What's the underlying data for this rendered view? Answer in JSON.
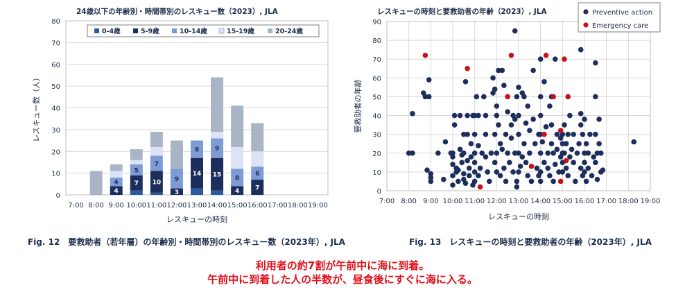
{
  "chart_data": [
    {
      "type": "bar",
      "stacked": true,
      "title": "24歳以下の年齢別・時間帯別のレスキュー数（2023）, JLA",
      "xlabel": "レスキューの時刻",
      "ylabel": "レスキュー数（人）",
      "ylim": [
        0,
        80
      ],
      "yticks": [
        0,
        10,
        20,
        30,
        40,
        50,
        60,
        70,
        80
      ],
      "grid": true,
      "legend_position": "top",
      "categories": [
        "7:00",
        "8:00",
        "9:00",
        "10:00",
        "11:00",
        "12:00",
        "13:00",
        "14:00",
        "15:00",
        "16:00",
        "17:00",
        "18:00",
        "19:00"
      ],
      "series": [
        {
          "name": "0-4歳",
          "color": "#2c5aa0",
          "values": [
            0,
            0,
            0,
            2,
            1,
            0,
            3,
            2,
            0,
            0,
            0,
            0,
            0
          ]
        },
        {
          "name": "5-9歳",
          "color": "#1c2e5b",
          "values": [
            0,
            0,
            4,
            7,
            10,
            3,
            14,
            15,
            4,
            7,
            0,
            0,
            0
          ]
        },
        {
          "name": "10-14歳",
          "color": "#7f9bd6",
          "values": [
            0,
            0,
            4,
            5,
            7,
            9,
            8,
            9,
            8,
            6,
            0,
            0,
            0
          ]
        },
        {
          "name": "15-19歳",
          "color": "#dbe3f4",
          "values": [
            0,
            0,
            3,
            2,
            4,
            0,
            0,
            3,
            10,
            7,
            0,
            0,
            0
          ]
        },
        {
          "name": "20-24歳",
          "color": "#a9b4c6",
          "values": [
            0,
            11,
            3,
            5,
            7,
            13,
            0,
            25,
            19,
            13,
            0,
            0,
            0
          ]
        }
      ],
      "data_labels": [
        {
          "category": "9:00",
          "series": "5-9歳",
          "text": "4"
        },
        {
          "category": "9:00",
          "series": "10-14歳",
          "text": "4"
        },
        {
          "category": "10:00",
          "series": "5-9歳",
          "text": "7"
        },
        {
          "category": "10:00",
          "series": "10-14歳",
          "text": "5"
        },
        {
          "category": "11:00",
          "series": "5-9歳",
          "text": "10"
        },
        {
          "category": "11:00",
          "series": "10-14歳",
          "text": "7"
        },
        {
          "category": "12:00",
          "series": "5-9歳",
          "text": "3"
        },
        {
          "category": "12:00",
          "series": "10-14歳",
          "text": "9"
        },
        {
          "category": "13:00",
          "series": "5-9歳",
          "text": "14"
        },
        {
          "category": "13:00",
          "series": "10-14歳",
          "text": "8"
        },
        {
          "category": "14:00",
          "series": "5-9歳",
          "text": "15"
        },
        {
          "category": "14:00",
          "series": "10-14歳",
          "text": "9"
        },
        {
          "category": "15:00",
          "series": "5-9歳",
          "text": "4"
        },
        {
          "category": "15:00",
          "series": "10-14歳",
          "text": "8"
        },
        {
          "category": "16:00",
          "series": "5-9歳",
          "text": "7"
        },
        {
          "category": "16:00",
          "series": "10-14歳",
          "text": "6"
        }
      ]
    },
    {
      "type": "scatter",
      "title": "レスキューの時刻と要救助者の年齢（2023）, JLA",
      "xlabel": "レスキューの時刻",
      "ylabel": "要救助者の年齢",
      "xlim": [
        "7:00",
        "19:00"
      ],
      "xticks": [
        "7:00",
        "8:00",
        "9:00",
        "10:00",
        "11:00",
        "12:00",
        "13:00",
        "14:00",
        "15:00",
        "16:00",
        "17:00",
        "18:00",
        "19:00"
      ],
      "ylim": [
        0,
        90
      ],
      "yticks": [
        0,
        10,
        20,
        30,
        40,
        50,
        60,
        70,
        80,
        90
      ],
      "grid": true,
      "legend_position": "top-right",
      "series": [
        {
          "name": "Preventive action",
          "color": "#1c2e5b",
          "points": [
            [
              "8:00",
              20
            ],
            [
              "8:10",
              41
            ],
            [
              "8:10",
              20
            ],
            [
              "8:40",
              52
            ],
            [
              "8:45",
              50
            ],
            [
              "8:55",
              59
            ],
            [
              "8:55",
              50
            ],
            [
              "8:50",
              11
            ],
            [
              "9:00",
              9
            ],
            [
              "9:00",
              7
            ],
            [
              "9:00",
              5
            ],
            [
              "9:20",
              20
            ],
            [
              "9:35",
              6
            ],
            [
              "9:40",
              26
            ],
            [
              "9:55",
              20
            ],
            [
              "10:00",
              20
            ],
            [
              "10:00",
              18
            ],
            [
              "10:00",
              14
            ],
            [
              "10:00",
              8
            ],
            [
              "10:00",
              3
            ],
            [
              "10:05",
              40
            ],
            [
              "10:05",
              35
            ],
            [
              "10:10",
              12
            ],
            [
              "10:10",
              10
            ],
            [
              "10:15",
              11
            ],
            [
              "10:15",
              5
            ],
            [
              "10:20",
              40
            ],
            [
              "10:20",
              22
            ],
            [
              "10:25",
              19
            ],
            [
              "10:25",
              15
            ],
            [
              "10:30",
              30
            ],
            [
              "10:30",
              20
            ],
            [
              "10:30",
              9
            ],
            [
              "10:30",
              6
            ],
            [
              "10:35",
              58
            ],
            [
              "10:35",
              4
            ],
            [
              "10:40",
              40
            ],
            [
              "10:40",
              30
            ],
            [
              "10:40",
              16
            ],
            [
              "10:45",
              12
            ],
            [
              "10:45",
              8
            ],
            [
              "10:50",
              25
            ],
            [
              "10:50",
              18
            ],
            [
              "10:55",
              40
            ],
            [
              "10:55",
              3
            ],
            [
              "11:00",
              40
            ],
            [
              "11:00",
              30
            ],
            [
              "11:00",
              20
            ],
            [
              "11:00",
              15
            ],
            [
              "11:00",
              10
            ],
            [
              "11:00",
              5
            ],
            [
              "11:05",
              50
            ],
            [
              "11:10",
              40
            ],
            [
              "11:10",
              24
            ],
            [
              "11:10",
              8
            ],
            [
              "11:15",
              12
            ],
            [
              "11:20",
              20
            ],
            [
              "11:25",
              50
            ],
            [
              "11:30",
              40
            ],
            [
              "11:30",
              30
            ],
            [
              "11:30",
              18
            ],
            [
              "11:35",
              10
            ],
            [
              "11:40",
              5
            ],
            [
              "11:45",
              20
            ],
            [
              "11:50",
              60
            ],
            [
              "11:50",
              52
            ],
            [
              "11:55",
              54
            ],
            [
              "11:55",
              30
            ],
            [
              "11:55",
              15
            ],
            [
              "12:00",
              45
            ],
            [
              "12:00",
              40
            ],
            [
              "12:00",
              20
            ],
            [
              "12:00",
              10
            ],
            [
              "12:05",
              64
            ],
            [
              "12:05",
              35
            ],
            [
              "12:10",
              25
            ],
            [
              "12:10",
              8
            ],
            [
              "12:15",
              64
            ],
            [
              "12:15",
              22
            ],
            [
              "12:20",
              56
            ],
            [
              "12:20",
              12
            ],
            [
              "12:25",
              30
            ],
            [
              "12:25",
              5
            ],
            [
              "12:30",
              42
            ],
            [
              "12:30",
              20
            ],
            [
              "12:35",
              15
            ],
            [
              "12:40",
              35
            ],
            [
              "12:40",
              28
            ],
            [
              "12:45",
              40
            ],
            [
              "12:45",
              10
            ],
            [
              "12:50",
              85
            ],
            [
              "12:50",
              38
            ],
            [
              "12:50",
              20
            ],
            [
              "12:55",
              50
            ],
            [
              "12:55",
              5
            ],
            [
              "12:55",
              2
            ],
            [
              "13:00",
              55
            ],
            [
              "13:00",
              40
            ],
            [
              "13:00",
              30
            ],
            [
              "13:00",
              20
            ],
            [
              "13:00",
              10
            ],
            [
              "13:05",
              13
            ],
            [
              "13:10",
              52
            ],
            [
              "13:10",
              18
            ],
            [
              "13:15",
              50
            ],
            [
              "13:15",
              25
            ],
            [
              "13:20",
              36
            ],
            [
              "13:20",
              15
            ],
            [
              "13:25",
              45
            ],
            [
              "13:25",
              8
            ],
            [
              "13:30",
              32
            ],
            [
              "13:30",
              20
            ],
            [
              "13:35",
              5
            ],
            [
              "13:40",
              64
            ],
            [
              "13:40",
              38
            ],
            [
              "13:45",
              25
            ],
            [
              "13:50",
              12
            ],
            [
              "13:55",
              30
            ],
            [
              "13:55",
              8
            ],
            [
              "14:00",
              70
            ],
            [
              "14:00",
              50
            ],
            [
              "14:00",
              40
            ],
            [
              "14:00",
              30
            ],
            [
              "14:00",
              20
            ],
            [
              "14:00",
              10
            ],
            [
              "14:00",
              5
            ],
            [
              "14:05",
              26
            ],
            [
              "14:10",
              58
            ],
            [
              "14:10",
              15
            ],
            [
              "14:15",
              34
            ],
            [
              "14:20",
              20
            ],
            [
              "14:20",
              12
            ],
            [
              "14:25",
              45
            ],
            [
              "14:25",
              8
            ],
            [
              "14:30",
              50
            ],
            [
              "14:30",
              35
            ],
            [
              "14:30",
              25
            ],
            [
              "14:35",
              20
            ],
            [
              "14:35",
              5
            ],
            [
              "14:40",
              70
            ],
            [
              "14:40",
              14
            ],
            [
              "14:45",
              30
            ],
            [
              "14:45",
              22
            ],
            [
              "14:50",
              10
            ],
            [
              "14:55",
              28
            ],
            [
              "14:55",
              18
            ],
            [
              "15:00",
              30
            ],
            [
              "15:00",
              25
            ],
            [
              "15:00",
              20
            ],
            [
              "15:00",
              15
            ],
            [
              "15:00",
              10
            ],
            [
              "15:05",
              35
            ],
            [
              "15:05",
              20
            ],
            [
              "15:10",
              25
            ],
            [
              "15:10",
              12
            ],
            [
              "15:15",
              30
            ],
            [
              "15:15",
              8
            ],
            [
              "15:20",
              40
            ],
            [
              "15:20",
              18
            ],
            [
              "15:25",
              22
            ],
            [
              "15:30",
              30
            ],
            [
              "15:30",
              15
            ],
            [
              "15:35",
              5
            ],
            [
              "15:40",
              20
            ],
            [
              "15:45",
              25
            ],
            [
              "15:50",
              75
            ],
            [
              "15:50",
              41
            ],
            [
              "15:50",
              35
            ],
            [
              "15:50",
              12
            ],
            [
              "15:55",
              30
            ],
            [
              "15:55",
              8
            ],
            [
              "16:00",
              38
            ],
            [
              "16:00",
              20
            ],
            [
              "16:00",
              15
            ],
            [
              "16:00",
              10
            ],
            [
              "16:05",
              25
            ],
            [
              "16:05",
              5
            ],
            [
              "16:10",
              20
            ],
            [
              "16:10",
              12
            ],
            [
              "16:15",
              30
            ],
            [
              "16:20",
              8
            ],
            [
              "16:25",
              18
            ],
            [
              "16:30",
              68
            ],
            [
              "16:30",
              50
            ],
            [
              "16:30",
              30
            ],
            [
              "16:30",
              15
            ],
            [
              "16:35",
              20
            ],
            [
              "16:35",
              6
            ],
            [
              "16:40",
              38
            ],
            [
              "16:40",
              25
            ],
            [
              "16:45",
              10
            ],
            [
              "16:45",
              20
            ],
            [
              "16:50",
              11
            ],
            [
              "18:15",
              26
            ]
          ]
        },
        {
          "name": "Emergency care",
          "color": "#c8121a",
          "points": [
            [
              "8:45",
              72
            ],
            [
              "10:40",
              65
            ],
            [
              "11:15",
              2
            ],
            [
              "12:30",
              50
            ],
            [
              "12:40",
              72
            ],
            [
              "13:35",
              13
            ],
            [
              "14:10",
              30
            ],
            [
              "14:15",
              72
            ],
            [
              "14:35",
              50
            ],
            [
              "14:55",
              32
            ],
            [
              "15:05",
              70
            ],
            [
              "15:15",
              50
            ],
            [
              "15:10",
              16
            ],
            [
              "14:55",
              5
            ]
          ]
        }
      ]
    }
  ],
  "captions": {
    "left": "Fig. 12　要救助者（若年層）の年齢別・時間帯別のレスキュー数（2023年）, JLA",
    "right": "Fig. 13　レスキューの時刻と要救助者の年齢（2023年）, JLA"
  },
  "notes": {
    "line1": "利用者の約7割が午前中に海に到着。",
    "line2": "午前中に到着した人の半数が、昼食後にすぐに海に入る。"
  },
  "colors": {
    "axis_text": "#1f2d4a",
    "grid": "#d9d9d9",
    "note": "#e0101a"
  }
}
